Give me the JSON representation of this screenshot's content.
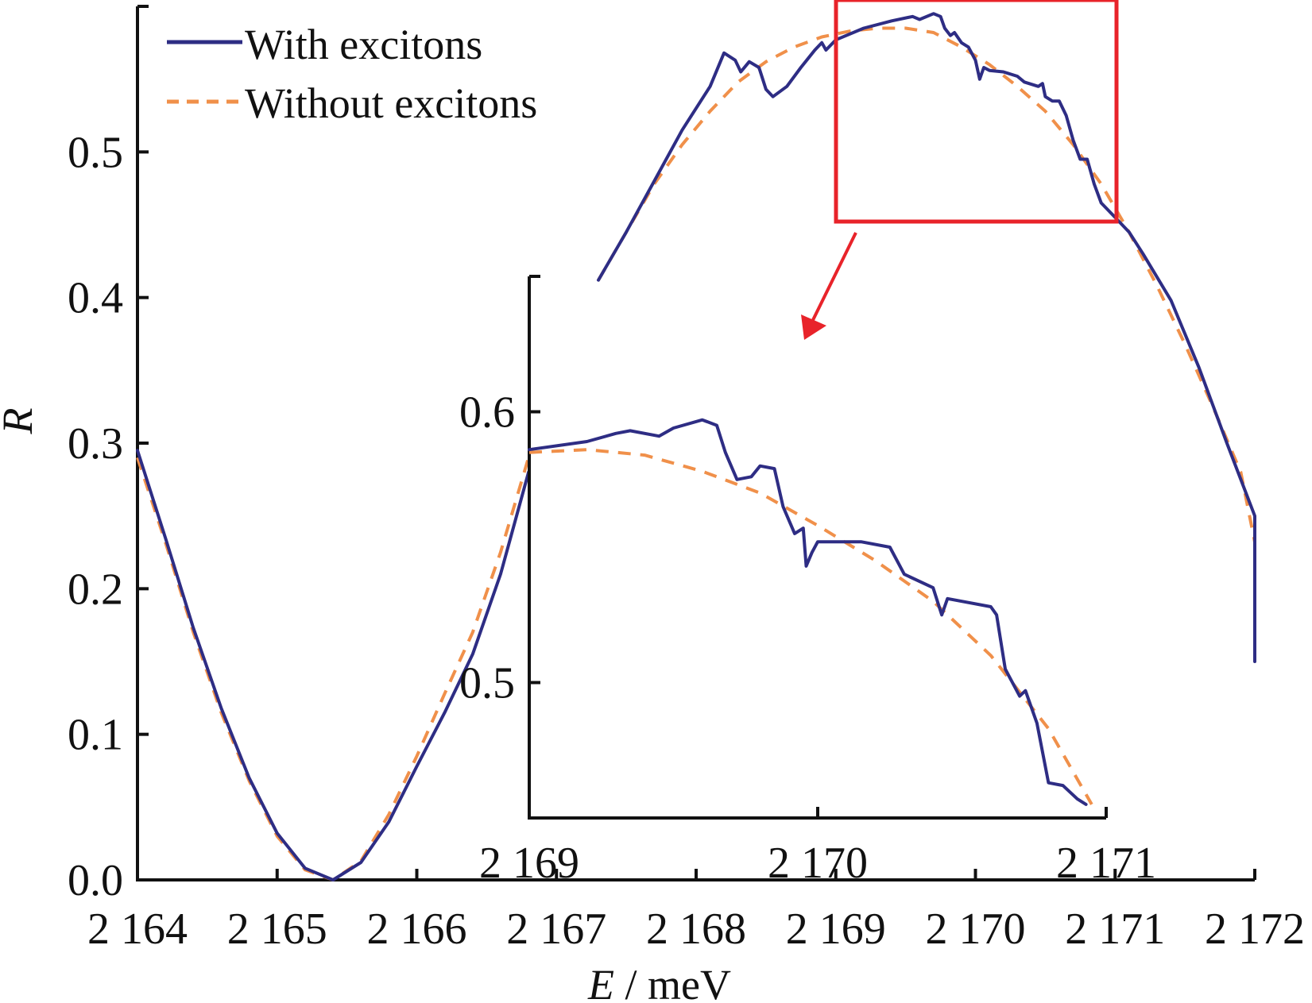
{
  "chart_data": [
    {
      "type": "line",
      "xlabel_var": "E",
      "xlabel_unit": " / meV",
      "ylabel": "R",
      "xlim": [
        2164,
        2172
      ],
      "ylim": [
        0,
        0.6
      ],
      "x_ticks": [
        2164,
        2165,
        2166,
        2167,
        2168,
        2169,
        2170,
        2171,
        2172
      ],
      "x_tick_labels": [
        "2 164",
        "2 165",
        "2 166",
        "2 167",
        "2 168",
        "2 169",
        "2 170",
        "2 171",
        "2 172"
      ],
      "y_ticks": [
        0.0,
        0.1,
        0.2,
        0.3,
        0.4,
        0.5
      ],
      "y_tick_labels": [
        "0.0",
        "0.1",
        "0.2",
        "0.3",
        "0.4",
        "0.5"
      ],
      "legend_position": "top-left",
      "series": [
        {
          "name": "With excitons",
          "color": "#2e2d84",
          "style": "solid",
          "points": [
            [
              2164.0,
              0.295
            ],
            [
              2164.2,
              0.235
            ],
            [
              2164.4,
              0.173
            ],
            [
              2164.6,
              0.118
            ],
            [
              2164.8,
              0.07
            ],
            [
              2165.0,
              0.032
            ],
            [
              2165.2,
              0.008
            ],
            [
              2165.4,
              0.0
            ],
            [
              2165.6,
              0.012
            ],
            [
              2165.8,
              0.04
            ],
            [
              2166.0,
              0.078
            ],
            [
              2166.2,
              0.115
            ],
            [
              2166.4,
              0.155
            ],
            [
              2166.6,
              0.21
            ],
            [
              2166.8,
              0.28
            ],
            [
              2167.3,
              0.412
            ],
            [
              2167.5,
              0.445
            ],
            [
              2167.7,
              0.48
            ],
            [
              2167.9,
              0.515
            ],
            [
              2168.1,
              0.545
            ],
            [
              2168.2,
              0.568
            ],
            [
              2168.28,
              0.563
            ],
            [
              2168.32,
              0.555
            ],
            [
              2168.38,
              0.562
            ],
            [
              2168.45,
              0.558
            ],
            [
              2168.5,
              0.543
            ],
            [
              2168.55,
              0.538
            ],
            [
              2168.65,
              0.545
            ],
            [
              2168.75,
              0.558
            ],
            [
              2168.85,
              0.57
            ],
            [
              2168.9,
              0.575
            ],
            [
              2168.93,
              0.57
            ],
            [
              2169.0,
              0.577
            ],
            [
              2169.2,
              0.585
            ],
            [
              2169.4,
              0.59
            ],
            [
              2169.55,
              0.593
            ],
            [
              2169.6,
              0.591
            ],
            [
              2169.7,
              0.595
            ],
            [
              2169.75,
              0.593
            ],
            [
              2169.78,
              0.585
            ],
            [
              2169.82,
              0.58
            ],
            [
              2169.85,
              0.582
            ],
            [
              2169.9,
              0.575
            ],
            [
              2169.95,
              0.572
            ],
            [
              2170.0,
              0.563
            ],
            [
              2170.03,
              0.55
            ],
            [
              2170.06,
              0.558
            ],
            [
              2170.1,
              0.556
            ],
            [
              2170.2,
              0.555
            ],
            [
              2170.3,
              0.552
            ],
            [
              2170.35,
              0.548
            ],
            [
              2170.45,
              0.545
            ],
            [
              2170.48,
              0.547
            ],
            [
              2170.5,
              0.538
            ],
            [
              2170.55,
              0.535
            ],
            [
              2170.6,
              0.535
            ],
            [
              2170.65,
              0.525
            ],
            [
              2170.7,
              0.508
            ],
            [
              2170.75,
              0.495
            ],
            [
              2170.8,
              0.495
            ],
            [
              2170.85,
              0.478
            ],
            [
              2170.9,
              0.465
            ],
            [
              2171.0,
              0.455
            ],
            [
              2171.1,
              0.445
            ],
            [
              2171.2,
              0.43
            ],
            [
              2171.4,
              0.398
            ],
            [
              2171.6,
              0.352
            ],
            [
              2171.8,
              0.3
            ],
            [
              2172.0,
              0.25
            ],
            [
              2172.2,
              0.2
            ],
            [
              2172.3,
              0.165
            ],
            [
              2172.35,
              0.15
            ]
          ]
        },
        {
          "name": "Without excitons",
          "color": "#f0904a",
          "style": "dashed",
          "points": [
            [
              2164.0,
              0.29
            ],
            [
              2164.2,
              0.232
            ],
            [
              2164.4,
              0.17
            ],
            [
              2164.6,
              0.115
            ],
            [
              2164.8,
              0.068
            ],
            [
              2165.0,
              0.03
            ],
            [
              2165.2,
              0.007
            ],
            [
              2165.4,
              0.0
            ],
            [
              2165.6,
              0.013
            ],
            [
              2165.8,
              0.045
            ],
            [
              2166.0,
              0.085
            ],
            [
              2166.2,
              0.128
            ],
            [
              2166.4,
              0.17
            ],
            [
              2166.6,
              0.225
            ],
            [
              2166.8,
              0.29
            ],
            [
              2167.3,
              0.412
            ],
            [
              2167.5,
              0.445
            ],
            [
              2167.7,
              0.478
            ],
            [
              2167.9,
              0.505
            ],
            [
              2168.1,
              0.528
            ],
            [
              2168.3,
              0.548
            ],
            [
              2168.5,
              0.562
            ],
            [
              2168.7,
              0.572
            ],
            [
              2168.9,
              0.579
            ],
            [
              2169.1,
              0.583
            ],
            [
              2169.3,
              0.585
            ],
            [
              2169.5,
              0.585
            ],
            [
              2169.7,
              0.582
            ],
            [
              2169.9,
              0.572
            ],
            [
              2170.1,
              0.56
            ],
            [
              2170.3,
              0.545
            ],
            [
              2170.5,
              0.528
            ],
            [
              2170.7,
              0.505
            ],
            [
              2170.9,
              0.478
            ],
            [
              2171.1,
              0.445
            ],
            [
              2171.3,
              0.408
            ],
            [
              2171.5,
              0.368
            ],
            [
              2171.7,
              0.325
            ],
            [
              2171.9,
              0.28
            ],
            [
              2172.1,
              0.232
            ],
            [
              2172.3,
              0.18
            ],
            [
              2172.35,
              0.165
            ]
          ]
        }
      ]
    },
    {
      "type": "line",
      "role": "inset zoom",
      "xlim": [
        2169,
        2171
      ],
      "ylim": [
        0.45,
        0.65
      ],
      "x_ticks": [
        2169,
        2170,
        2171
      ],
      "x_tick_labels": [
        "2 169",
        "2 170",
        "2 171"
      ],
      "y_ticks": [
        0.5,
        0.6
      ],
      "y_tick_labels": [
        "0.5",
        "0.6"
      ],
      "series": [
        {
          "name": "With excitons",
          "color": "#2e2d84",
          "style": "solid",
          "points": [
            [
              2169.0,
              0.586
            ],
            [
              2169.2,
              0.589
            ],
            [
              2169.3,
              0.592
            ],
            [
              2169.35,
              0.593
            ],
            [
              2169.45,
              0.591
            ],
            [
              2169.5,
              0.594
            ],
            [
              2169.6,
              0.597
            ],
            [
              2169.65,
              0.595
            ],
            [
              2169.68,
              0.585
            ],
            [
              2169.72,
              0.575
            ],
            [
              2169.77,
              0.576
            ],
            [
              2169.8,
              0.58
            ],
            [
              2169.85,
              0.579
            ],
            [
              2169.88,
              0.565
            ],
            [
              2169.92,
              0.555
            ],
            [
              2169.95,
              0.557
            ],
            [
              2169.96,
              0.543
            ],
            [
              2169.98,
              0.548
            ],
            [
              2170.0,
              0.552
            ],
            [
              2170.15,
              0.552
            ],
            [
              2170.25,
              0.55
            ],
            [
              2170.3,
              0.54
            ],
            [
              2170.4,
              0.535
            ],
            [
              2170.43,
              0.525
            ],
            [
              2170.45,
              0.531
            ],
            [
              2170.6,
              0.528
            ],
            [
              2170.62,
              0.525
            ],
            [
              2170.65,
              0.505
            ],
            [
              2170.7,
              0.495
            ],
            [
              2170.72,
              0.497
            ],
            [
              2170.76,
              0.485
            ],
            [
              2170.8,
              0.463
            ],
            [
              2170.85,
              0.462
            ],
            [
              2170.9,
              0.457
            ],
            [
              2170.93,
              0.455
            ]
          ]
        },
        {
          "name": "Without excitons",
          "color": "#f0904a",
          "style": "dashed",
          "points": [
            [
              2169.0,
              0.585
            ],
            [
              2169.2,
              0.586
            ],
            [
              2169.4,
              0.584
            ],
            [
              2169.6,
              0.578
            ],
            [
              2169.8,
              0.57
            ],
            [
              2170.0,
              0.558
            ],
            [
              2170.2,
              0.545
            ],
            [
              2170.4,
              0.53
            ],
            [
              2170.6,
              0.51
            ],
            [
              2170.8,
              0.483
            ],
            [
              2170.95,
              0.455
            ]
          ]
        }
      ]
    }
  ]
}
